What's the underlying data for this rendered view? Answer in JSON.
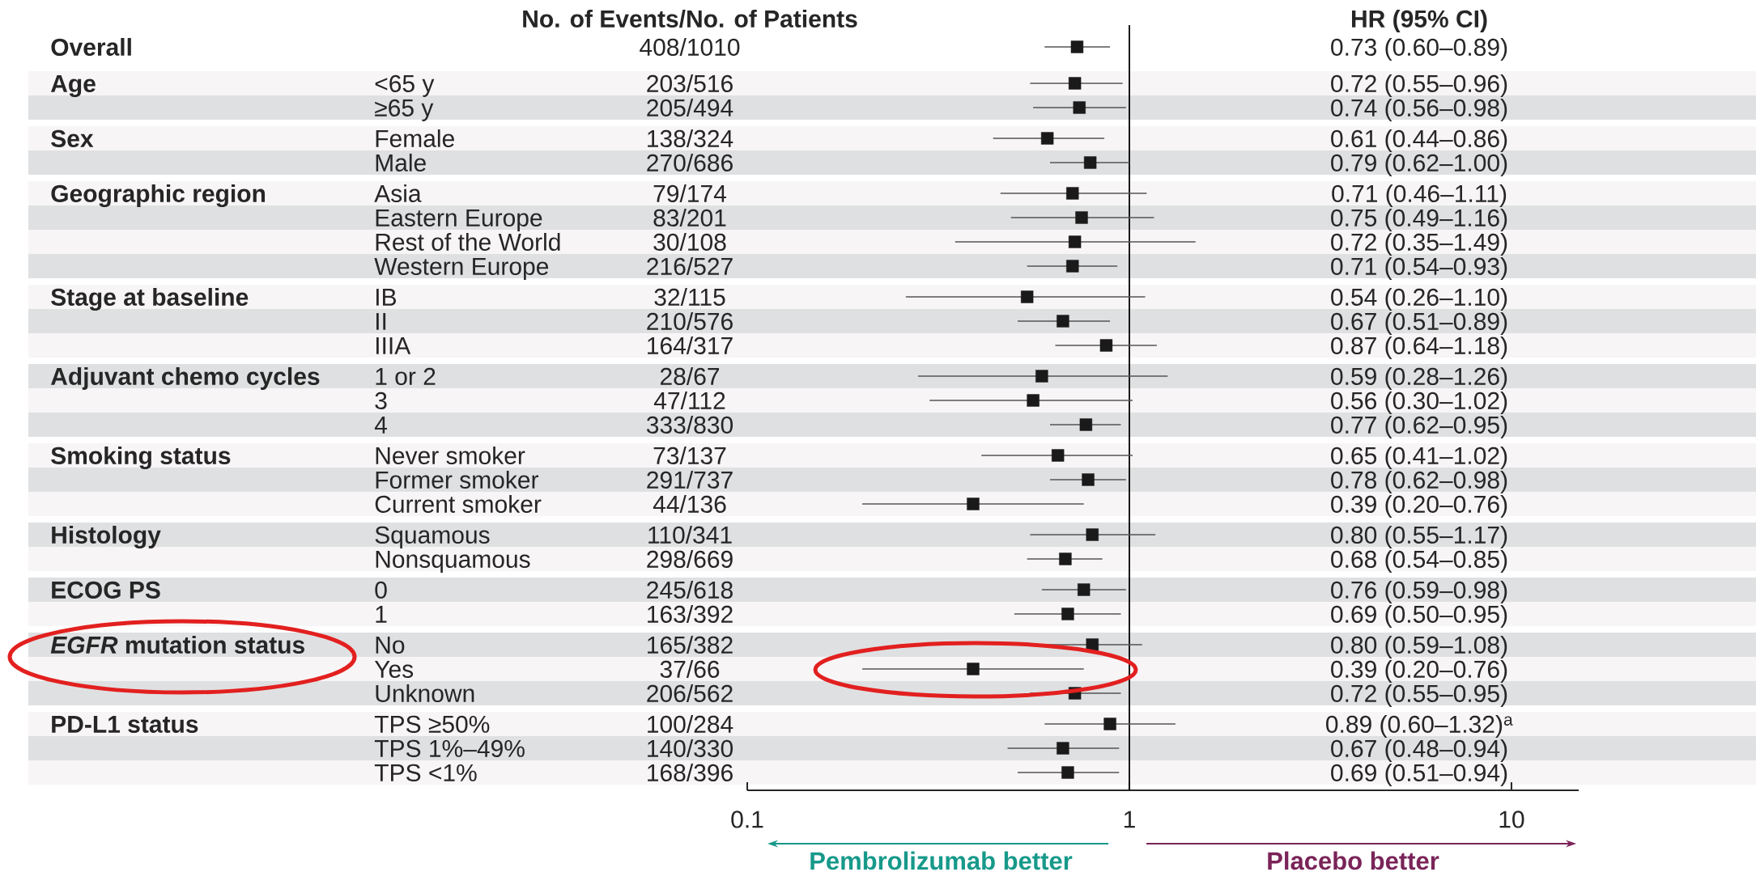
{
  "chart_data": {
    "type": "scatter",
    "orientation": "horizontal",
    "categories": [
      null,
      "<65 y",
      "≥65 y",
      "Female",
      "Male",
      "Asia",
      "Eastern Europe",
      "Rest of the World",
      "Western Europe",
      "IB",
      "II",
      "IIIA",
      "1 or 2",
      "3",
      "4",
      "Never smoker",
      "Former smoker",
      "Current smoker",
      "Squamous",
      "Nonsquamous",
      "0",
      "1",
      "No",
      "Yes",
      "Unknown",
      "TPS ≥50%",
      "TPS 1%–49%",
      "TPS <1%"
    ],
    "y2_categories": [
      "408/1010",
      "203/516",
      "205/494",
      "138/324",
      "270/686",
      "79/174",
      "83/201",
      "30/108",
      "216/527",
      "32/115",
      "210/576",
      "164/317",
      "28/67",
      "47/112",
      "333/830",
      "73/137",
      "291/737",
      "44/136",
      "110/341",
      "298/669",
      "245/618",
      "163/392",
      "165/382",
      "37/66",
      "206/562",
      "100/284",
      "140/330",
      "168/396"
    ],
    "values": [
      0.73,
      0.72,
      0.74,
      0.61,
      0.79,
      0.71,
      0.75,
      0.72,
      0.71,
      0.54,
      0.67,
      0.87,
      0.59,
      0.56,
      0.77,
      0.65,
      0.78,
      0.39,
      0.8,
      0.68,
      0.76,
      0.69,
      0.8,
      0.39,
      0.72,
      0.89,
      0.67,
      0.69
    ],
    "errors": [
      [
        0.6,
        0.89
      ],
      [
        0.55,
        0.96
      ],
      [
        0.56,
        0.98
      ],
      [
        0.44,
        0.86
      ],
      [
        0.62,
        1.0
      ],
      [
        0.46,
        1.11
      ],
      [
        0.49,
        1.16
      ],
      [
        0.35,
        1.49
      ],
      [
        0.54,
        0.93
      ],
      [
        0.26,
        1.1
      ],
      [
        0.51,
        0.89
      ],
      [
        0.64,
        1.18
      ],
      [
        0.28,
        1.26
      ],
      [
        0.3,
        1.02
      ],
      [
        0.62,
        0.95
      ],
      [
        0.41,
        1.02
      ],
      [
        0.62,
        0.98
      ],
      [
        0.2,
        0.76
      ],
      [
        0.55,
        1.17
      ],
      [
        0.54,
        0.85
      ],
      [
        0.59,
        0.98
      ],
      [
        0.5,
        0.95
      ],
      [
        0.59,
        1.08
      ],
      [
        0.2,
        0.76
      ],
      [
        0.55,
        0.95
      ],
      [
        0.6,
        1.32
      ],
      [
        0.48,
        0.94
      ],
      [
        0.51,
        0.94
      ]
    ],
    "color": "#1a1a1a",
    "marker": "square",
    "xlim": [
      0.1,
      15
    ],
    "xticks": [
      0.1,
      1,
      10
    ],
    "log": "x",
    "ref_lines": [
      {
        "axis": "x",
        "value": 1
      }
    ],
    "bands": [
      {
        "axis": "y",
        "from": "<65 y",
        "to": "<65 y",
        "color": "#f8f5f6"
      },
      {
        "axis": "y",
        "from": "≥65 y",
        "to": "≥65 y",
        "color": "#dfe0e2"
      },
      {
        "axis": "y",
        "from": "Female",
        "to": "Female",
        "color": "#f8f5f6"
      },
      {
        "axis": "y",
        "from": "Male",
        "to": "Male",
        "color": "#dfe0e2"
      },
      {
        "axis": "y",
        "from": "Asia",
        "to": "Asia",
        "color": "#f8f5f6"
      },
      {
        "axis": "y",
        "from": "Eastern Europe",
        "to": "Eastern Europe",
        "color": "#dfe0e2"
      },
      {
        "axis": "y",
        "from": "Rest of the World",
        "to": "Rest of the World",
        "color": "#f8f5f6"
      },
      {
        "axis": "y",
        "from": "Western Europe",
        "to": "Western Europe",
        "color": "#dfe0e2"
      },
      {
        "axis": "y",
        "from": "IB",
        "to": "IB",
        "color": "#f8f5f6"
      },
      {
        "axis": "y",
        "from": "II",
        "to": "II",
        "color": "#dfe0e2"
      },
      {
        "axis": "y",
        "from": "IIIA",
        "to": "IIIA",
        "color": "#f8f5f6"
      },
      {
        "axis": "y",
        "from": "1 or 2",
        "to": "1 or 2",
        "color": "#dfe0e2"
      },
      {
        "axis": "y",
        "from": "3",
        "to": "3",
        "color": "#f8f5f6"
      },
      {
        "axis": "y",
        "from": "4",
        "to": "4",
        "color": "#dfe0e2"
      },
      {
        "axis": "y",
        "from": "Never smoker",
        "to": "Never smoker",
        "color": "#f8f5f6"
      },
      {
        "axis": "y",
        "from": "Former smoker",
        "to": "Former smoker",
        "color": "#dfe0e2"
      },
      {
        "axis": "y",
        "from": "Current smoker",
        "to": "Current smoker",
        "color": "#f8f5f6"
      },
      {
        "axis": "y",
        "from": "Squamous",
        "to": "Squamous",
        "color": "#dfe0e2"
      },
      {
        "axis": "y",
        "from": "Nonsquamous",
        "to": "Nonsquamous",
        "color": "#f8f5f6"
      },
      {
        "axis": "y",
        "from": "0",
        "to": "0",
        "color": "#dfe0e2"
      },
      {
        "axis": "y",
        "from": "1",
        "to": "1",
        "color": "#f8f5f6"
      },
      {
        "axis": "y",
        "from": "No",
        "to": "No",
        "color": "#dfe0e2"
      },
      {
        "axis": "y",
        "from": "Yes",
        "to": "Yes",
        "color": "#f8f5f6"
      },
      {
        "axis": "y",
        "from": "Unknown",
        "to": "Unknown",
        "color": "#dfe0e2"
      },
      {
        "axis": "y",
        "from": "TPS ≥50%",
        "to": "TPS ≥50%",
        "color": "#f8f5f6"
      },
      {
        "axis": "y",
        "from": "TPS 1%–49%",
        "to": "TPS 1%–49%",
        "color": "#dfe0e2"
      },
      {
        "axis": "y",
        "from": "TPS <1%",
        "to": "TPS <1%",
        "color": "#f8f5f6"
      }
    ],
    "annotations": [
      "No. of Events/No. of Patients",
      "HR (95% CI)",
      "Overall",
      "Age",
      "Sex",
      "Geographic region",
      "Stage at baseline",
      "Adjuvant chemo cycles",
      "Smoking status",
      "Histology",
      "ECOG PS",
      "*EGFR* mutation status",
      "PD-L1 status",
      "0.73 (0.60–0.89)",
      "0.72 (0.55–0.96)",
      "0.74 (0.56–0.98)",
      "0.61 (0.44–0.86)",
      "0.79 (0.62–1.00)",
      "0.71 (0.46–1.11)",
      "0.75 (0.49–1.16)",
      "0.72 (0.35–1.49)",
      "0.71 (0.54–0.93)",
      "0.54 (0.26–1.10)",
      "0.67 (0.51–0.89)",
      "0.87 (0.64–1.18)",
      "0.59 (0.28–1.26)",
      "0.56 (0.30–1.02)",
      "0.77 (0.62–0.95)",
      "0.65 (0.41–1.02)",
      "0.78 (0.62–0.98)",
      "0.39 (0.20–0.76)",
      "0.80 (0.55–1.17)",
      "0.68 (0.54–0.85)",
      "0.76 (0.59–0.98)",
      "0.69 (0.50–0.95)",
      "0.80 (0.59–1.08)",
      "0.39 (0.20–0.76)",
      "0.72 (0.55–0.95)",
      "0.89 (0.60–1.32)$^{a}$",
      "0.67 (0.48–0.94)",
      "0.69 (0.51–0.94)",
      "Pembrolizumab better",
      "Placebo better"
    ]
  }
}
